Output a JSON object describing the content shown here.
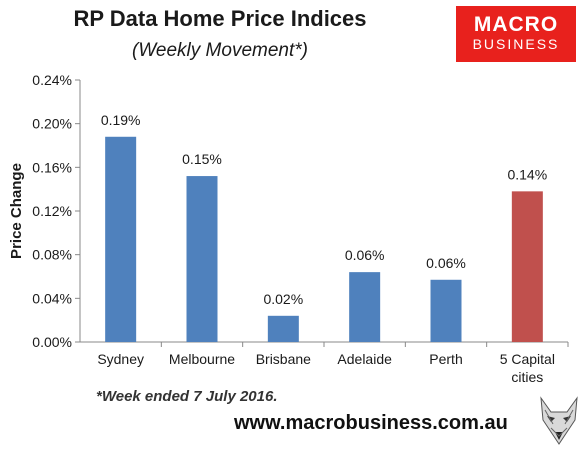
{
  "header": {
    "title": "RP Data Home Price Indices",
    "subtitle": "(Weekly Movement*)"
  },
  "logo": {
    "line1": "MACRO",
    "line2": "BUSINESS",
    "color": "#e8211d"
  },
  "footnote": "*Week ended 7 July 2016.",
  "website": "www.macrobusiness.com.au",
  "chart_data": {
    "type": "bar",
    "title": "RP Data Home Price Indices",
    "subtitle": "(Weekly Movement*)",
    "xlabel": "",
    "ylabel": "Price Change",
    "categories": [
      "Sydney",
      "Melbourne",
      "Brisbane",
      "Adelaide",
      "Perth",
      "5 Capital cities"
    ],
    "values": [
      0.188,
      0.152,
      0.024,
      0.064,
      0.057,
      0.138
    ],
    "data_labels": [
      "0.19%",
      "0.15%",
      "0.02%",
      "0.06%",
      "0.06%",
      "0.14%"
    ],
    "ylim": [
      0,
      0.24
    ],
    "yticks": [
      "0.00%",
      "0.04%",
      "0.08%",
      "0.12%",
      "0.16%",
      "0.20%",
      "0.24%"
    ],
    "grid": false,
    "colors": [
      "#4f81bd",
      "#4f81bd",
      "#4f81bd",
      "#4f81bd",
      "#4f81bd",
      "#c0504d"
    ]
  }
}
